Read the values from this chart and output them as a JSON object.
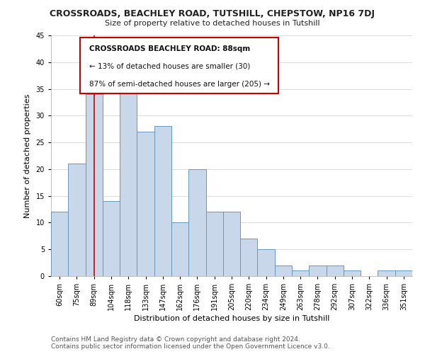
{
  "title": "CROSSROADS, BEACHLEY ROAD, TUTSHILL, CHEPSTOW, NP16 7DJ",
  "subtitle": "Size of property relative to detached houses in Tutshill",
  "xlabel": "Distribution of detached houses by size in Tutshill",
  "ylabel": "Number of detached properties",
  "footer_line1": "Contains HM Land Registry data © Crown copyright and database right 2024.",
  "footer_line2": "Contains public sector information licensed under the Open Government Licence v3.0.",
  "bar_labels": [
    "60sqm",
    "75sqm",
    "89sqm",
    "104sqm",
    "118sqm",
    "133sqm",
    "147sqm",
    "162sqm",
    "176sqm",
    "191sqm",
    "205sqm",
    "220sqm",
    "234sqm",
    "249sqm",
    "263sqm",
    "278sqm",
    "292sqm",
    "307sqm",
    "322sqm",
    "336sqm",
    "351sqm"
  ],
  "bar_values": [
    12,
    21,
    34,
    14,
    36,
    27,
    28,
    10,
    20,
    12,
    12,
    7,
    5,
    2,
    1,
    2,
    2,
    1,
    0,
    1,
    1
  ],
  "bar_color": "#c8d8ea",
  "bar_edge_color": "#6699bb",
  "vline_x": 2,
  "vline_color": "#cc0000",
  "annotation_text_line1": "CROSSROADS BEACHLEY ROAD: 88sqm",
  "annotation_text_line2": "← 13% of detached houses are smaller (30)",
  "annotation_text_line3": "87% of semi-detached houses are larger (205) →",
  "annotation_box_color": "#ffffff",
  "annotation_box_edge": "#cc0000",
  "ylim": [
    0,
    45
  ],
  "yticks": [
    0,
    5,
    10,
    15,
    20,
    25,
    30,
    35,
    40,
    45
  ],
  "bg_color": "#ffffff",
  "grid_color": "#dddddd",
  "title_fontsize": 9,
  "subtitle_fontsize": 8,
  "axis_label_fontsize": 8,
  "tick_fontsize": 7,
  "footer_fontsize": 6.5
}
